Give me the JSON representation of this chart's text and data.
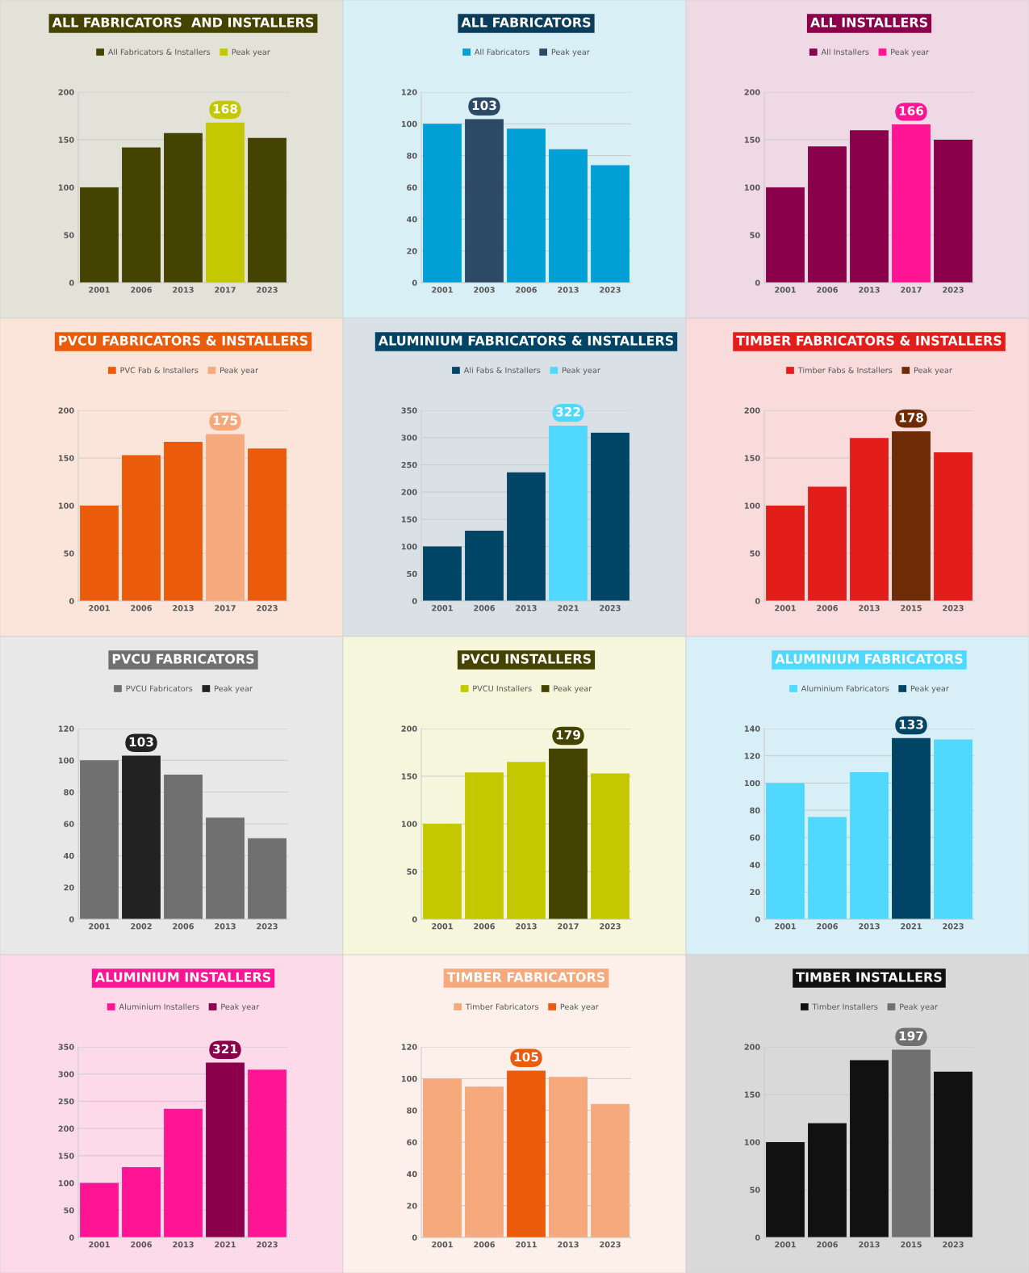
{
  "chart_data": [
    {
      "type": "bar",
      "title": "ALL FABRICATORS  AND INSTALLERS",
      "categories": [
        "2001",
        "2006",
        "2013",
        "2017",
        "2023"
      ],
      "ylim": [
        0,
        200
      ],
      "yticks": [
        0,
        50,
        100,
        150,
        200
      ],
      "grid": "y",
      "legend": "top",
      "series": [
        {
          "name": "All Fabricators & Installers",
          "color": "#444400",
          "values": [
            100,
            142,
            157,
            null,
            152
          ]
        },
        {
          "name": "Peak year",
          "color": "#c4c800",
          "values": [
            null,
            null,
            null,
            168,
            null
          ],
          "value_labels": [
            null,
            null,
            null,
            "168",
            null
          ]
        }
      ]
    },
    {
      "type": "bar",
      "title": "ALL FABRICATORS",
      "categories": [
        "2001",
        "2003",
        "2006",
        "2013",
        "2023"
      ],
      "ylim": [
        0,
        120
      ],
      "yticks": [
        0,
        20,
        40,
        60,
        80,
        100,
        120
      ],
      "grid": "y",
      "legend": "top",
      "series": [
        {
          "name": "All Fabricators",
          "color": "#00a0d4",
          "values": [
            100,
            null,
            97,
            84,
            74
          ]
        },
        {
          "name": "Peak year",
          "color": "#2c4a66",
          "values": [
            null,
            103,
            null,
            null,
            null
          ],
          "value_labels": [
            null,
            "103",
            null,
            null,
            null
          ]
        }
      ]
    },
    {
      "type": "bar",
      "title": "ALL INSTALLERS",
      "categories": [
        "2001",
        "2006",
        "2013",
        "2017",
        "2023"
      ],
      "ylim": [
        0,
        200
      ],
      "yticks": [
        0,
        50,
        100,
        150,
        200
      ],
      "grid": "y",
      "legend": "top",
      "series": [
        {
          "name": "All Installers",
          "color": "#8a004a",
          "values": [
            100,
            143,
            160,
            null,
            150
          ]
        },
        {
          "name": "Peak year",
          "color": "#ff1493",
          "values": [
            null,
            null,
            null,
            166,
            null
          ],
          "value_labels": [
            null,
            null,
            null,
            "166",
            null
          ]
        }
      ]
    },
    {
      "type": "bar",
      "title": "PVCU FABRICATORS & INSTALLERS",
      "categories": [
        "2001",
        "2006",
        "2013",
        "2017",
        "2023"
      ],
      "ylim": [
        0,
        200
      ],
      "yticks": [
        0,
        50,
        100,
        150,
        200
      ],
      "grid": "y",
      "legend": "top",
      "series": [
        {
          "name": "PVC Fab & Installers",
          "color": "#ea5c0c",
          "values": [
            100,
            153,
            167,
            null,
            160
          ]
        },
        {
          "name": "Peak year",
          "color": "#f6a97c",
          "values": [
            null,
            null,
            null,
            175,
            null
          ],
          "value_labels": [
            null,
            null,
            null,
            "175",
            null
          ]
        }
      ]
    },
    {
      "type": "bar",
      "title": "ALUMINIUM FABRICATORS & INSTALLERS",
      "categories": [
        "2001",
        "2006",
        "2013",
        "2021",
        "2023"
      ],
      "ylim": [
        0,
        350
      ],
      "yticks": [
        0,
        50,
        100,
        150,
        200,
        250,
        300,
        350
      ],
      "grid": "y",
      "legend": "top",
      "series": [
        {
          "name": "Ali Fabs & Installers",
          "color": "#004466",
          "values": [
            100,
            129,
            236,
            null,
            309
          ]
        },
        {
          "name": "Peak year",
          "color": "#50d8ff",
          "values": [
            null,
            null,
            null,
            322,
            null
          ],
          "value_labels": [
            null,
            null,
            null,
            "322",
            null
          ]
        }
      ]
    },
    {
      "type": "bar",
      "title": "TIMBER FABRICATORS & INSTALLERS",
      "categories": [
        "2001",
        "2006",
        "2013",
        "2015",
        "2023"
      ],
      "ylim": [
        0,
        200
      ],
      "yticks": [
        0,
        50,
        100,
        150,
        200
      ],
      "grid": "y",
      "legend": "top",
      "series": [
        {
          "name": "Timber Fabs & Installers",
          "color": "#e31e1a",
          "values": [
            100,
            120,
            171,
            null,
            156
          ]
        },
        {
          "name": "Peak year",
          "color": "#6e2b06",
          "values": [
            null,
            null,
            null,
            178,
            null
          ],
          "value_labels": [
            null,
            null,
            null,
            "178",
            null
          ]
        }
      ]
    },
    {
      "type": "bar",
      "title": "PVCU FABRICATORS",
      "categories": [
        "2001",
        "2002",
        "2006",
        "2013",
        "2023"
      ],
      "ylim": [
        0,
        120
      ],
      "yticks": [
        0,
        20,
        40,
        60,
        80,
        100,
        120
      ],
      "grid": "y",
      "legend": "top",
      "series": [
        {
          "name": "PVCU Fabricators",
          "color": "#707070",
          "values": [
            100,
            null,
            91,
            64,
            51
          ]
        },
        {
          "name": "Peak year",
          "color": "#222222",
          "values": [
            null,
            103,
            null,
            null,
            null
          ],
          "value_labels": [
            null,
            "103",
            null,
            null,
            null
          ]
        }
      ]
    },
    {
      "type": "bar",
      "title": "PVCU INSTALLERS",
      "categories": [
        "2001",
        "2006",
        "2013",
        "2017",
        "2023"
      ],
      "ylim": [
        0,
        200
      ],
      "yticks": [
        0,
        50,
        100,
        150,
        200
      ],
      "grid": "y",
      "legend": "top",
      "series": [
        {
          "name": "PVCU Installers",
          "color": "#c4c800",
          "values": [
            100,
            154,
            165,
            null,
            153
          ]
        },
        {
          "name": "Peak year",
          "color": "#444400",
          "values": [
            null,
            null,
            null,
            179,
            null
          ],
          "value_labels": [
            null,
            null,
            null,
            "179",
            null
          ]
        }
      ]
    },
    {
      "type": "bar",
      "title": "ALUMINIUM FABRICATORS",
      "categories": [
        "2001",
        "2006",
        "2013",
        "2021",
        "2023"
      ],
      "ylim": [
        0,
        140
      ],
      "yticks": [
        0,
        20,
        40,
        60,
        80,
        100,
        120,
        140
      ],
      "grid": "y",
      "legend": "top",
      "series": [
        {
          "name": "Aluminium Fabricators",
          "color": "#50d8ff",
          "values": [
            100,
            75,
            108,
            null,
            132
          ]
        },
        {
          "name": "Peak year",
          "color": "#004466",
          "values": [
            null,
            null,
            null,
            133,
            null
          ],
          "value_labels": [
            null,
            null,
            null,
            "133",
            null
          ]
        }
      ]
    },
    {
      "type": "bar",
      "title": "ALUMINIUM INSTALLERS",
      "categories": [
        "2001",
        "2006",
        "2013",
        "2021",
        "2023"
      ],
      "ylim": [
        0,
        350
      ],
      "yticks": [
        0,
        50,
        100,
        150,
        200,
        250,
        300,
        350
      ],
      "grid": "y",
      "legend": "top",
      "series": [
        {
          "name": "Aluminium Installers",
          "color": "#ff1493",
          "values": [
            100,
            129,
            236,
            null,
            308
          ]
        },
        {
          "name": "Peak year",
          "color": "#8a004a",
          "values": [
            null,
            null,
            null,
            321,
            null
          ],
          "value_labels": [
            null,
            null,
            null,
            "321",
            null
          ]
        }
      ]
    },
    {
      "type": "bar",
      "title": "TIMBER FABRICATORS",
      "categories": [
        "2001",
        "2006",
        "2011",
        "2013",
        "2023"
      ],
      "ylim": [
        0,
        120
      ],
      "yticks": [
        0,
        20,
        40,
        60,
        80,
        100,
        120
      ],
      "grid": "y",
      "legend": "top",
      "series": [
        {
          "name": "Timber Fabricators",
          "color": "#f6a97c",
          "values": [
            100,
            95,
            null,
            101,
            84
          ]
        },
        {
          "name": "Peak year",
          "color": "#ea5c0c",
          "values": [
            null,
            null,
            105,
            null,
            null
          ],
          "value_labels": [
            null,
            null,
            "105",
            null,
            null
          ]
        }
      ]
    },
    {
      "type": "bar",
      "title": "TIMBER INSTALLERS",
      "categories": [
        "2001",
        "2006",
        "2013",
        "2015",
        "2023"
      ],
      "ylim": [
        0,
        200
      ],
      "yticks": [
        0,
        50,
        100,
        150,
        200
      ],
      "grid": "y",
      "legend": "top",
      "series": [
        {
          "name": "Timber Installers",
          "color": "#111111",
          "values": [
            100,
            120,
            186,
            null,
            174
          ]
        },
        {
          "name": "Peak year",
          "color": "#707070",
          "values": [
            null,
            null,
            null,
            197,
            null
          ],
          "value_labels": [
            null,
            null,
            null,
            "197",
            null
          ]
        }
      ]
    }
  ]
}
